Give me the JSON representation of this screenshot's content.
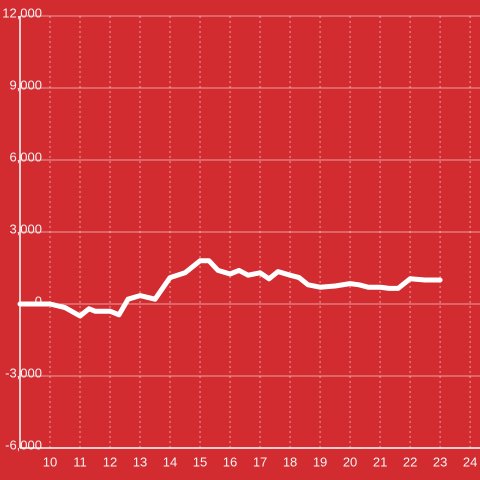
{
  "chart_data": {
    "type": "line",
    "x": [
      9,
      10,
      10.5,
      11,
      11.3,
      11.5,
      12,
      12.3,
      12.6,
      13,
      13.5,
      14,
      14.5,
      15,
      15.3,
      15.6,
      16,
      16.3,
      16.6,
      17,
      17.3,
      17.6,
      18,
      18.3,
      18.6,
      19,
      19.5,
      20,
      20.3,
      20.6,
      21,
      21.3,
      21.6,
      22,
      22.5,
      23
    ],
    "series": [
      {
        "color": "#ffffff",
        "values": [
          0,
          0,
          -150,
          -500,
          -200,
          -300,
          -300,
          -450,
          200,
          350,
          200,
          1100,
          1300,
          1800,
          1800,
          1400,
          1250,
          1400,
          1200,
          1300,
          1050,
          1350,
          1200,
          1100,
          800,
          700,
          750,
          850,
          800,
          700,
          700,
          650,
          650,
          1050,
          1000,
          1000
        ]
      }
    ],
    "xlim": [
      9,
      24.33
    ],
    "xticks": [
      10,
      11,
      12,
      13,
      14,
      15,
      16,
      17,
      18,
      19,
      20,
      21,
      22,
      23,
      24
    ],
    "ylim": [
      -6000,
      12000
    ],
    "yticks": [
      {
        "value": -6000,
        "label": "-6,000"
      },
      {
        "value": -3000,
        "label": "-3,000"
      },
      0,
      {
        "value": 3000,
        "label": "3,000"
      },
      {
        "value": 6000,
        "label": "6,000"
      },
      {
        "value": 9000,
        "label": "9,000"
      },
      {
        "value": 12000,
        "label": "12,000"
      }
    ],
    "grid": true
  }
}
